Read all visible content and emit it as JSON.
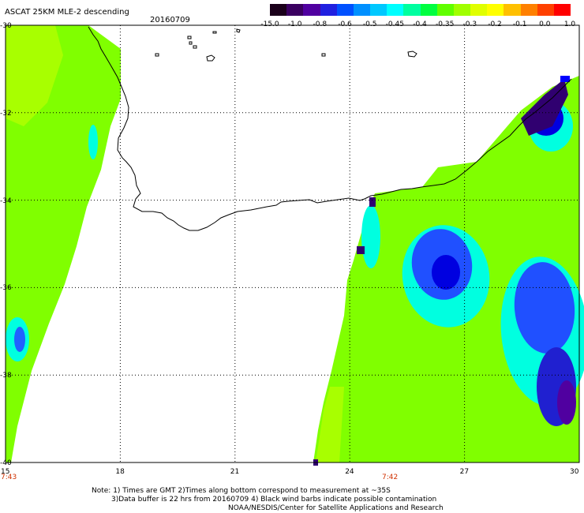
{
  "title": "ASCAT 25KM MLE-2 descending",
  "date": "20160709",
  "colorbar": {
    "labels": [
      "-15.0",
      "-1.0",
      "-0.8",
      "-0.6",
      "-0.5",
      "-0.45",
      "-0.4",
      "-0.35",
      "-0.3",
      "-0.2",
      "-0.1",
      "0.0",
      "1.0"
    ],
    "colors": [
      "#1a001a",
      "#3a0060",
      "#5000a0",
      "#2020e0",
      "#0050ff",
      "#0090ff",
      "#00c8ff",
      "#00ffff",
      "#00ffa0",
      "#00ff40",
      "#60ff00",
      "#a0ff00",
      "#e0ff00",
      "#ffff00",
      "#ffc000",
      "#ff8000",
      "#ff4000",
      "#ff0000"
    ]
  },
  "axes": {
    "x_ticks": [
      "15",
      "18",
      "21",
      "24",
      "27",
      "30"
    ],
    "y_ticks": [
      "-30",
      "-32",
      "-34",
      "-36",
      "-38",
      "-40"
    ]
  },
  "times": {
    "left": "7:43",
    "center": "7:42"
  },
  "notes": {
    "line1": "Note: 1) Times are GMT 2)Times along bottom correspond to measurement at ~35S",
    "line2": "3)Data buffer is 22 hrs from 20160709 4) Black wind barbs indicate possible contamination",
    "line3": "NOAA/NESDIS/Center for Satellite Applications and Research"
  },
  "palette": {
    "green": "#80ff00",
    "lightgreen": "#a8ff00",
    "cyan": "#00ffe0",
    "blue": "#0000ff",
    "dark": "#300070"
  }
}
